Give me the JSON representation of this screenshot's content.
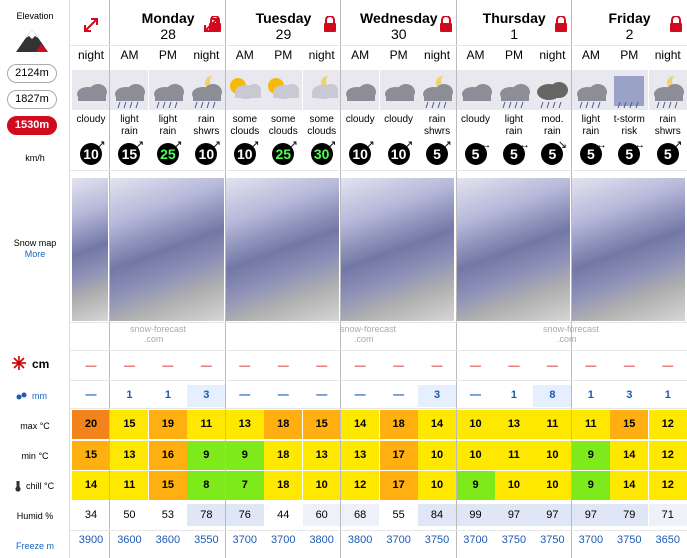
{
  "sidebar": {
    "elevation_label": "Elevation",
    "elevations": [
      "2124m",
      "1827m",
      "1530m"
    ],
    "active_elevation": "1530m",
    "wind_unit": "km/h",
    "snow_map_label": "Snow map",
    "more_label": "More",
    "snow_unit": "cm",
    "rain_unit": "mm",
    "max_label": "max °C",
    "min_label": "min °C",
    "chill_label": "chill °C",
    "humid_label": "Humid %",
    "freeze_label": "Freeze m"
  },
  "days": [
    {
      "name": "Monday",
      "num": "28"
    },
    {
      "name": "Tuesday",
      "num": "29"
    },
    {
      "name": "Wednesday",
      "num": "30"
    },
    {
      "name": "Thursday",
      "num": "1"
    },
    {
      "name": "Friday",
      "num": "2"
    }
  ],
  "watermark": [
    "snow-forecast",
    ".com"
  ],
  "snow_dash": "—",
  "periods": [
    {
      "p": "night",
      "w1": "cloudy",
      "w2": "",
      "wind": "10",
      "icon": "cloud-icon",
      "rain": "—",
      "max": "20",
      "min": "15",
      "chill": "14",
      "hum": "34",
      "frz": "3900",
      "maxc": "#f2841b",
      "minc": "#ffb010",
      "chc": "#ffe800"
    },
    {
      "p": "AM",
      "w1": "light",
      "w2": "rain",
      "wind": "15",
      "icon": "rain-cloud-icon",
      "rain": "1",
      "max": "15",
      "min": "13",
      "chill": "11",
      "hum": "50",
      "frz": "3600",
      "maxc": "#ffe800",
      "minc": "#ffe800",
      "chc": "#ffe800"
    },
    {
      "p": "PM",
      "w1": "light",
      "w2": "rain",
      "wind": "25",
      "icon": "rain-cloud-icon",
      "rain": "1",
      "max": "19",
      "min": "16",
      "chill": "15",
      "hum": "53",
      "frz": "3600",
      "maxc": "#ffb010",
      "minc": "#ffb010",
      "chc": "#ffb010",
      "green": true
    },
    {
      "p": "night",
      "w1": "rain",
      "w2": "shwrs",
      "wind": "10",
      "icon": "moon-rain-icon",
      "rain": "3",
      "max": "11",
      "min": "9",
      "chill": "8",
      "hum": "78",
      "frz": "3550",
      "maxc": "#ffe800",
      "minc": "#7fea1b",
      "chc": "#7fea1b",
      "rbg": true
    },
    {
      "p": "AM",
      "w1": "some",
      "w2": "clouds",
      "wind": "10",
      "icon": "sun-cloud-icon",
      "rain": "—",
      "max": "13",
      "min": "9",
      "chill": "7",
      "hum": "76",
      "frz": "3700",
      "maxc": "#ffe800",
      "minc": "#7fea1b",
      "chc": "#7fea1b"
    },
    {
      "p": "PM",
      "w1": "some",
      "w2": "clouds",
      "wind": "25",
      "icon": "sun-cloud-icon",
      "rain": "—",
      "max": "18",
      "min": "18",
      "chill": "18",
      "hum": "44",
      "frz": "3700",
      "maxc": "#ffb010",
      "minc": "#ffe800",
      "chc": "#ffe800",
      "green": true
    },
    {
      "p": "night",
      "w1": "some",
      "w2": "clouds",
      "wind": "30",
      "icon": "moon-cloud-icon",
      "rain": "—",
      "max": "15",
      "min": "13",
      "chill": "10",
      "hum": "60",
      "frz": "3800",
      "maxc": "#ffb010",
      "minc": "#ffe800",
      "chc": "#ffe800",
      "green": true
    },
    {
      "p": "AM",
      "w1": "cloudy",
      "w2": "",
      "wind": "10",
      "icon": "cloud-icon",
      "rain": "—",
      "max": "14",
      "min": "13",
      "chill": "12",
      "hum": "68",
      "frz": "3800",
      "maxc": "#ffe800",
      "minc": "#ffe800",
      "chc": "#ffe800"
    },
    {
      "p": "PM",
      "w1": "cloudy",
      "w2": "",
      "wind": "10",
      "icon": "cloud-icon",
      "rain": "—",
      "max": "18",
      "min": "17",
      "chill": "17",
      "hum": "55",
      "frz": "3700",
      "maxc": "#ffb010",
      "minc": "#ffb010",
      "chc": "#ffb010"
    },
    {
      "p": "night",
      "w1": "rain",
      "w2": "shwrs",
      "wind": "5",
      "icon": "moon-rain-icon",
      "rain": "3",
      "max": "14",
      "min": "10",
      "chill": "10",
      "hum": "84",
      "frz": "3750",
      "maxc": "#ffe800",
      "minc": "#ffe800",
      "chc": "#ffe800",
      "rbg": true
    },
    {
      "p": "AM",
      "w1": "cloudy",
      "w2": "",
      "wind": "5",
      "icon": "cloud-icon",
      "rain": "—",
      "max": "10",
      "min": "10",
      "chill": "9",
      "hum": "99",
      "frz": "3700",
      "maxc": "#ffe800",
      "minc": "#ffe800",
      "chc": "#7fea1b"
    },
    {
      "p": "PM",
      "w1": "light",
      "w2": "rain",
      "wind": "5",
      "icon": "rain-cloud-icon",
      "rain": "1",
      "max": "13",
      "min": "11",
      "chill": "10",
      "hum": "97",
      "frz": "3750",
      "maxc": "#ffe800",
      "minc": "#ffe800",
      "chc": "#ffe800"
    },
    {
      "p": "night",
      "w1": "mod.",
      "w2": "rain",
      "wind": "5",
      "icon": "heavy-rain-icon",
      "rain": "8",
      "max": "11",
      "min": "10",
      "chill": "10",
      "hum": "97",
      "frz": "3750",
      "maxc": "#ffe800",
      "minc": "#ffe800",
      "chc": "#ffe800",
      "rbg": true
    },
    {
      "p": "AM",
      "w1": "light",
      "w2": "rain",
      "wind": "5",
      "icon": "rain-cloud-icon",
      "rain": "1",
      "max": "11",
      "min": "9",
      "chill": "9",
      "hum": "97",
      "frz": "3700",
      "maxc": "#ffe800",
      "minc": "#7fea1b",
      "chc": "#7fea1b"
    },
    {
      "p": "PM",
      "w1": "t-storm",
      "w2": "risk",
      "wind": "5",
      "icon": "storm-icon",
      "rain": "3",
      "max": "15",
      "min": "14",
      "chill": "14",
      "hum": "79",
      "frz": "3750",
      "maxc": "#ffb010",
      "minc": "#ffe800",
      "chc": "#ffe800"
    },
    {
      "p": "night",
      "w1": "rain",
      "w2": "shwrs",
      "wind": "5",
      "icon": "moon-rain-icon",
      "rain": "1",
      "max": "12",
      "min": "12",
      "chill": "12",
      "hum": "71",
      "frz": "3650",
      "maxc": "#ffe800",
      "minc": "#ffe800",
      "chc": "#ffe800"
    }
  ]
}
